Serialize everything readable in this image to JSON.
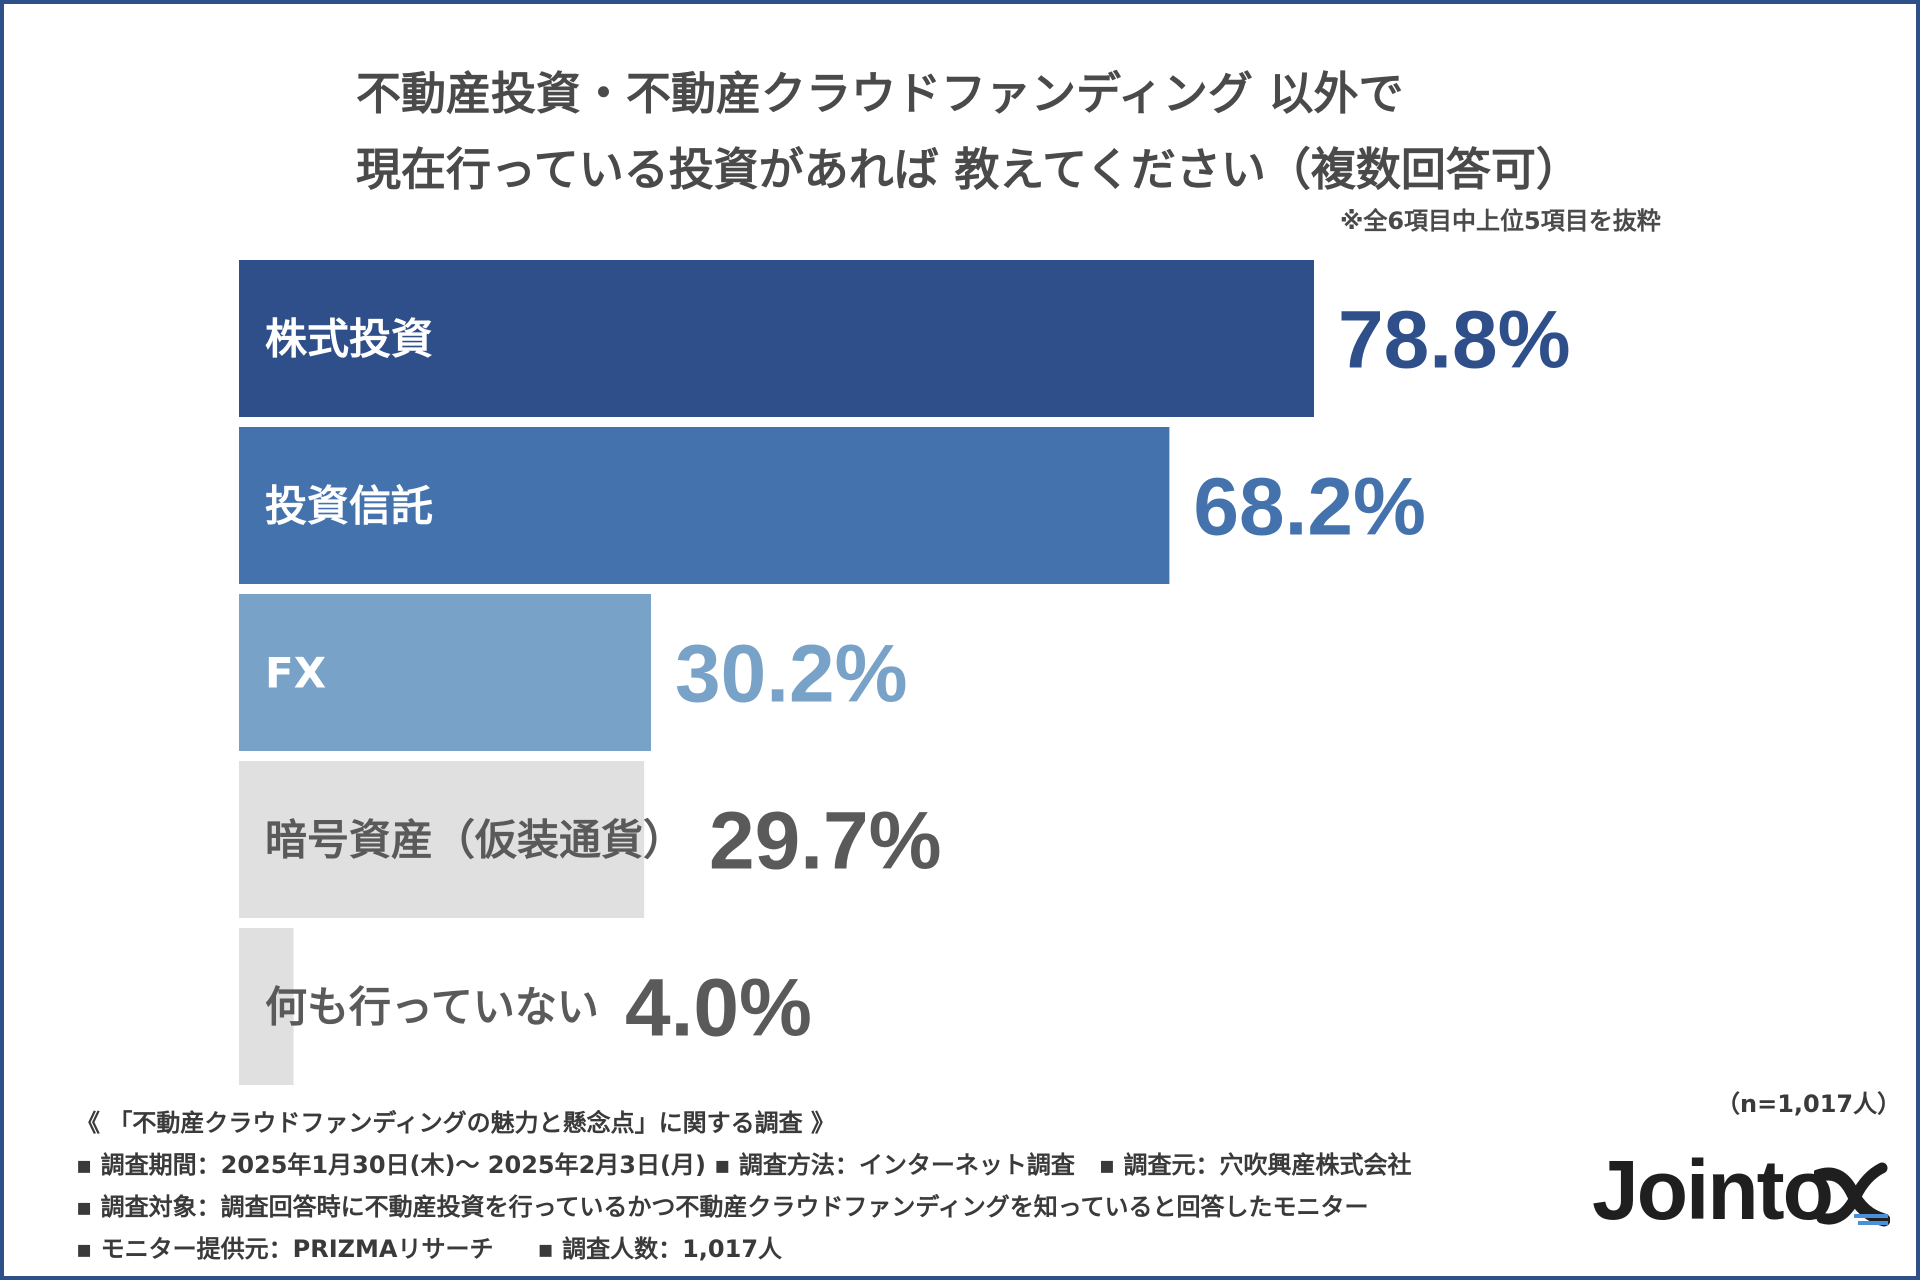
{
  "title": {
    "line1": "不動産投資・不動産クラウドファンディング 以外で",
    "line2": "現在行っている投資があれば 教えてください（複数回答可）"
  },
  "note": "※全6項目中上位5項目を抜粋",
  "chart_data": {
    "type": "bar",
    "orientation": "horizontal",
    "categories": [
      "株式投資",
      "投資信託",
      "FX",
      "暗号資産（仮装通貨）",
      "何も行っていない"
    ],
    "values": [
      78.8,
      68.2,
      30.2,
      29.7,
      4.0
    ],
    "value_labels": [
      "78.8%",
      "68.2%",
      "30.2%",
      "29.7%",
      "4.0%"
    ],
    "bar_colors": [
      "#2f4f8a",
      "#4472ad",
      "#78a2c8",
      "#e0e0e0",
      "#e0e0e0"
    ],
    "label_colors": [
      "#ffffff",
      "#ffffff",
      "#ffffff",
      "#5a5a5a",
      "#5a5a5a"
    ],
    "value_colors": [
      "#2f4f8a",
      "#4472ad",
      "#78a2c8",
      "#5a5a5a",
      "#5a5a5a"
    ],
    "xlim": [
      0,
      100
    ],
    "grid": false
  },
  "sample": "（n=1,017人）",
  "footer": {
    "survey_name": "《 「不動産クラウドファンディングの魅力と懸念点」に関する調査 》",
    "line1": "▪ 調査期間：2025年1月30日(木)〜 2025年2月3日(月) ▪ 調査方法：インターネット調査　▪ 調査元：穴吹興産株式会社",
    "line2": "▪ 調査対象：調査回答時に不動産投資を行っているかつ不動産クラウドファンディングを知っていると回答したモニター",
    "line3a": "▪ モニター提供元：PRIZMAリサーチ",
    "line3b": "▪ 調査人数：1,017人"
  },
  "logo": {
    "text": "Jointo",
    "icon": "alpha-logo-icon"
  }
}
